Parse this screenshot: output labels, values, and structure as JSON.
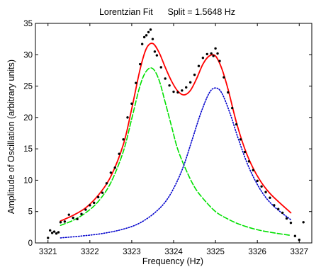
{
  "chart_data": {
    "type": "line",
    "title": "Lorentzian Fit      Split = 1.5648 Hz",
    "xlabel": "Frequency (Hz)",
    "ylabel": "Amplitude of Oscillation (arbitrary units)",
    "xlim": [
      3320.7,
      3327.3
    ],
    "ylim": [
      0,
      35
    ],
    "xticks": [
      3321,
      3322,
      3323,
      3324,
      3325,
      3326,
      3327
    ],
    "yticks": [
      0,
      5,
      10,
      15,
      20,
      25,
      30,
      35
    ],
    "grid": false,
    "box": true,
    "colors": {
      "total": "#ff0000",
      "peak1": "#00e000",
      "peak2": "#0000cc",
      "data": "#000000"
    },
    "series": [
      {
        "style": "solid",
        "color": "#ff0000",
        "x": [
          3321.3,
          3321.6,
          3321.9,
          3322.2,
          3322.5,
          3322.8,
          3323.0,
          3323.2,
          3323.35,
          3323.5,
          3323.65,
          3323.8,
          3323.95,
          3324.1,
          3324.25,
          3324.4,
          3324.55,
          3324.7,
          3324.85,
          3325.0,
          3325.15,
          3325.3,
          3325.5,
          3325.7,
          3325.9,
          3326.1,
          3326.3,
          3326.5,
          3326.8
        ],
        "values": [
          3.5,
          4.4,
          5.6,
          7.6,
          10.6,
          15.7,
          21.4,
          27.7,
          31.0,
          31.8,
          30.4,
          28.0,
          25.8,
          24.2,
          23.6,
          24.3,
          26.2,
          28.5,
          29.8,
          29.8,
          27.8,
          24.5,
          19.2,
          15.0,
          11.9,
          9.6,
          7.9,
          6.6,
          4.8
        ]
      },
      {
        "style": "dashed",
        "color": "#00e000",
        "x": [
          3321.3,
          3321.6,
          3321.9,
          3322.2,
          3322.5,
          3322.8,
          3323.0,
          3323.2,
          3323.35,
          3323.5,
          3323.65,
          3323.8,
          3323.95,
          3324.1,
          3324.3,
          3324.5,
          3324.7,
          3325.0,
          3325.3,
          3325.6,
          3326.0,
          3326.4,
          3326.8
        ],
        "values": [
          2.8,
          3.6,
          4.8,
          6.6,
          9.6,
          14.6,
          19.8,
          25.1,
          27.4,
          27.8,
          26.0,
          22.4,
          18.6,
          14.9,
          11.6,
          8.9,
          7.1,
          5.0,
          3.8,
          2.9,
          2.1,
          1.6,
          1.2
        ]
      },
      {
        "style": "dotted",
        "color": "#0000cc",
        "x": [
          3321.3,
          3321.8,
          3322.3,
          3322.8,
          3323.2,
          3323.6,
          3323.9,
          3324.2,
          3324.45,
          3324.65,
          3324.85,
          3325.0,
          3325.15,
          3325.35,
          3325.55,
          3325.8,
          3326.1,
          3326.4,
          3326.8
        ],
        "values": [
          0.8,
          1.1,
          1.5,
          2.2,
          3.2,
          5.1,
          7.5,
          11.6,
          16.6,
          20.7,
          23.9,
          24.7,
          23.9,
          20.6,
          16.5,
          12.0,
          8.2,
          5.8,
          3.7
        ]
      },
      {
        "style": "markers",
        "color": "#000000",
        "x": [
          3321.0,
          3321.05,
          3321.1,
          3321.15,
          3321.2,
          3321.25,
          3321.3,
          3321.4,
          3321.5,
          3321.6,
          3321.7,
          3321.8,
          3321.9,
          3322.0,
          3322.1,
          3322.2,
          3322.3,
          3322.4,
          3322.5,
          3322.6,
          3322.7,
          3322.8,
          3322.9,
          3323.0,
          3323.1,
          3323.2,
          3323.25,
          3323.3,
          3323.35,
          3323.4,
          3323.45,
          3323.5,
          3323.55,
          3323.6,
          3323.7,
          3323.8,
          3323.9,
          3324.0,
          3324.1,
          3324.2,
          3324.3,
          3324.4,
          3324.5,
          3324.6,
          3324.7,
          3324.8,
          3324.9,
          3324.95,
          3325.0,
          3325.05,
          3325.1,
          3325.2,
          3325.3,
          3325.4,
          3325.5,
          3325.6,
          3325.7,
          3325.8,
          3325.9,
          3326.0,
          3326.1,
          3326.2,
          3326.3,
          3326.4,
          3326.5,
          3326.6,
          3326.7,
          3326.8,
          3326.9,
          3327.0,
          3327.1
        ],
        "values": [
          0.8,
          2.0,
          1.6,
          1.8,
          1.5,
          1.7,
          3.3,
          3.4,
          4.5,
          4.0,
          3.8,
          4.6,
          5.3,
          6.0,
          6.4,
          7.3,
          8.0,
          9.5,
          11.2,
          12.0,
          14.2,
          16.5,
          20.0,
          22.2,
          25.5,
          28.5,
          31.7,
          32.8,
          33.1,
          33.6,
          34.0,
          32.5,
          30.5,
          29.9,
          28.0,
          26.2,
          25.1,
          24.1,
          24.0,
          24.3,
          24.8,
          25.6,
          26.8,
          28.2,
          29.5,
          30.1,
          30.2,
          29.8,
          31.0,
          30.2,
          29.0,
          26.4,
          24.0,
          21.5,
          18.9,
          16.5,
          14.5,
          13.0,
          11.6,
          9.9,
          9.0,
          8.1,
          7.2,
          6.0,
          5.4,
          4.8,
          3.9,
          3.2,
          1.1,
          0.5,
          3.3
        ]
      }
    ]
  }
}
